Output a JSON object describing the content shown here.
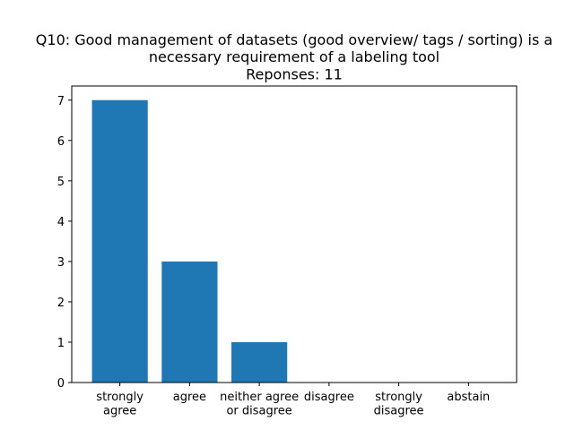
{
  "chart_data": {
    "type": "bar",
    "title": "Q10: Good management of datasets (good overview/ tags / sorting) is a\nnecessary requirement of a labeling tool\nReponses: 11",
    "categories": [
      "strongly\nagree",
      "agree",
      "neither agree\nor disagree",
      "disagree",
      "strongly\ndisagree",
      "abstain"
    ],
    "values": [
      7,
      3,
      1,
      0,
      0,
      0
    ],
    "color": "#1f77b4",
    "ylim": [
      0,
      7.35
    ],
    "yticks": [
      0,
      1,
      2,
      3,
      4,
      5,
      6,
      7
    ],
    "grid": false
  }
}
